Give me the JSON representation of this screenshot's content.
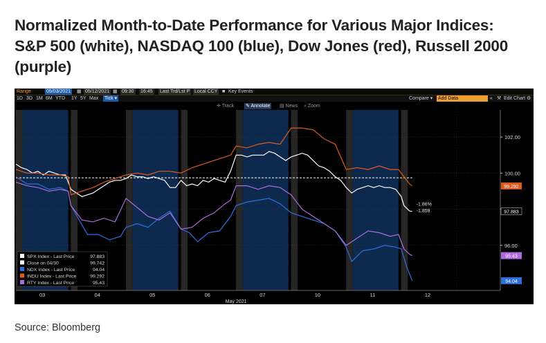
{
  "headline": "Normalized Month-to-Date Performance for Various Major Indices: S&P 500 (white), NASDAQ 100 (blue), Dow Jones (red), Russell 2000 (purple)",
  "source": "Source: Bloomberg",
  "toolbar": {
    "range_label": "Range",
    "start_date": "05/03/2021",
    "end_date": "05/12/2021",
    "start_time": "09:30",
    "end_time": "16:45",
    "price_field": "Last Trd/Lst P",
    "currency": "Local CCY",
    "key_events": "Key Events",
    "periods": [
      "1D",
      "3D",
      "1M",
      "6M",
      "YTD",
      "1Y",
      "5Y",
      "Max"
    ],
    "tick_label": "Tick",
    "compare_label": "Compare",
    "add_data": "Add Data",
    "edit_chart": "Edit Chart",
    "tools": [
      "Track",
      "Annotate",
      "News",
      "Zoom"
    ]
  },
  "colors": {
    "spx": "#ffffff",
    "ndx": "#2e6fe0",
    "indu": "#e05a1e",
    "rty": "#b06ae0",
    "close_line": "#ffffff",
    "shade_blue": "#0d2a4e",
    "shade_gray": "#262626"
  },
  "chart_data": {
    "type": "line",
    "title": "",
    "xlabel": "May 2021",
    "ylabel": "",
    "x_ticks": [
      "03",
      "04",
      "05",
      "06",
      "07",
      "10",
      "11",
      "12"
    ],
    "y_ticks": [
      "102.00",
      "100.00",
      "98.00",
      "96.00"
    ],
    "ylim": [
      93.5,
      103.5
    ],
    "grid": true,
    "legend_position": "bottom-left",
    "x_domain": [
      0,
      8.8
    ],
    "series": [
      {
        "name": "SPX Index - Last Price",
        "color": "#ffffff",
        "last": "97.883",
        "x": [
          0.0,
          0.1,
          0.2,
          0.3,
          0.4,
          0.5,
          0.6,
          0.7,
          0.8,
          0.9,
          1.0,
          1.1,
          1.2,
          1.3,
          1.4,
          1.5,
          1.6,
          1.7,
          1.8,
          1.9,
          2.0,
          2.1,
          2.2,
          2.3,
          2.4,
          2.5,
          2.6,
          2.7,
          2.8,
          2.9,
          3.0,
          3.1,
          3.2,
          3.3,
          3.4,
          3.5,
          3.6,
          3.7,
          3.8,
          3.9,
          4.0,
          4.1,
          4.2,
          4.3,
          4.4,
          4.5,
          4.6,
          4.7,
          4.8,
          4.9,
          5.0,
          5.1,
          5.2,
          5.3,
          5.4,
          5.5,
          5.6,
          5.7,
          5.8,
          5.9,
          6.0,
          6.1,
          6.2,
          6.3,
          6.4,
          6.5,
          6.6,
          6.7,
          6.8,
          6.9,
          7.0,
          7.05,
          7.15,
          7.2
        ],
        "values": [
          100.5,
          100.3,
          100.2,
          100.0,
          100.1,
          99.9,
          100.1,
          100.0,
          99.9,
          99.9,
          99.1,
          98.9,
          98.7,
          98.8,
          98.9,
          99.1,
          99.3,
          99.5,
          99.6,
          99.6,
          99.7,
          99.9,
          99.8,
          99.8,
          99.7,
          99.8,
          99.7,
          99.6,
          99.2,
          99.2,
          99.6,
          99.3,
          99.4,
          99.3,
          99.6,
          99.5,
          99.7,
          99.6,
          99.5,
          100.1,
          101.0,
          101.0,
          100.9,
          101.0,
          101.0,
          101.0,
          101.2,
          101.1,
          100.9,
          100.7,
          100.9,
          101.0,
          101.1,
          101.0,
          100.7,
          100.4,
          100.3,
          100.1,
          99.8,
          99.6,
          99.2,
          98.9,
          99.1,
          99.2,
          99.3,
          99.2,
          99.3,
          99.2,
          99.2,
          99.1,
          98.7,
          98.2,
          97.9,
          97.88
        ]
      },
      {
        "name": "Close on 04/30",
        "color": "#ffffff",
        "last": "99.742",
        "dashed": true,
        "x": [
          0.0,
          7.2
        ],
        "values": [
          99.742,
          99.742
        ]
      },
      {
        "name": "NDX Index - Last Price",
        "color": "#2e6fe0",
        "last": "94.04",
        "x": [
          0.0,
          0.2,
          0.4,
          0.6,
          0.8,
          0.95,
          1.0,
          1.15,
          1.3,
          1.5,
          1.7,
          1.9,
          2.0,
          2.2,
          2.4,
          2.6,
          2.8,
          3.0,
          3.15,
          3.3,
          3.5,
          3.7,
          3.9,
          4.0,
          4.2,
          4.4,
          4.6,
          4.8,
          5.0,
          5.2,
          5.4,
          5.6,
          5.8,
          6.0,
          6.1,
          6.3,
          6.5,
          6.7,
          6.9,
          7.0,
          7.1,
          7.2
        ],
        "values": [
          99.8,
          99.4,
          99.4,
          99.1,
          99.2,
          99.0,
          98.2,
          97.4,
          96.6,
          96.6,
          96.3,
          96.5,
          97.0,
          97.2,
          97.0,
          97.5,
          97.9,
          96.9,
          96.7,
          96.2,
          96.7,
          96.8,
          97.6,
          98.2,
          98.4,
          98.5,
          98.6,
          98.3,
          97.8,
          97.6,
          97.4,
          97.2,
          96.8,
          95.9,
          95.1,
          95.7,
          95.8,
          96.0,
          95.9,
          95.8,
          94.8,
          94.04
        ]
      },
      {
        "name": "INDU Index - Last Price",
        "color": "#e05a1e",
        "last": "99.292",
        "x": [
          0.0,
          0.2,
          0.4,
          0.6,
          0.8,
          0.95,
          1.0,
          1.2,
          1.4,
          1.6,
          1.8,
          2.0,
          2.2,
          2.4,
          2.6,
          2.8,
          3.0,
          3.2,
          3.4,
          3.6,
          3.8,
          3.9,
          4.0,
          4.2,
          4.4,
          4.6,
          4.8,
          5.0,
          5.2,
          5.4,
          5.6,
          5.8,
          6.0,
          6.2,
          6.4,
          6.6,
          6.8,
          6.95,
          7.05,
          7.15,
          7.2
        ],
        "values": [
          100.2,
          100.0,
          100.0,
          99.9,
          99.9,
          99.8,
          98.8,
          99.0,
          99.2,
          99.5,
          99.7,
          99.9,
          100.0,
          99.9,
          100.1,
          100.1,
          100.0,
          100.3,
          100.5,
          100.7,
          100.9,
          101.0,
          101.5,
          101.4,
          101.6,
          101.7,
          101.6,
          102.5,
          102.5,
          102.4,
          101.9,
          101.6,
          100.2,
          100.3,
          100.2,
          100.4,
          100.2,
          100.2,
          99.8,
          99.4,
          99.292
        ]
      },
      {
        "name": "RTY Index - Last Price",
        "color": "#b06ae0",
        "last": "95.43",
        "x": [
          0.0,
          0.2,
          0.4,
          0.6,
          0.8,
          0.95,
          1.0,
          1.2,
          1.4,
          1.6,
          1.8,
          2.0,
          2.2,
          2.4,
          2.6,
          2.8,
          3.0,
          3.2,
          3.4,
          3.6,
          3.8,
          3.9,
          4.0,
          4.2,
          4.4,
          4.6,
          4.8,
          5.0,
          5.2,
          5.4,
          5.6,
          5.8,
          6.0,
          6.2,
          6.4,
          6.6,
          6.8,
          6.95,
          7.05,
          7.15,
          7.2
        ],
        "values": [
          99.5,
          99.3,
          99.2,
          99.0,
          99.1,
          99.0,
          98.2,
          97.4,
          97.3,
          97.5,
          97.3,
          98.6,
          98.1,
          97.6,
          97.4,
          97.8,
          96.9,
          97.0,
          97.5,
          97.8,
          98.3,
          98.5,
          99.3,
          99.3,
          99.1,
          99.3,
          99.2,
          98.8,
          98.0,
          97.6,
          97.2,
          96.8,
          96.0,
          96.4,
          96.8,
          96.7,
          96.5,
          96.6,
          95.8,
          95.5,
          95.43
        ]
      }
    ],
    "annotations": [
      {
        "text": "-1.86%",
        "x": 7.25,
        "y": 98.3
      },
      {
        "text": "-1.859",
        "x": 7.25,
        "y": 97.95
      }
    ]
  }
}
